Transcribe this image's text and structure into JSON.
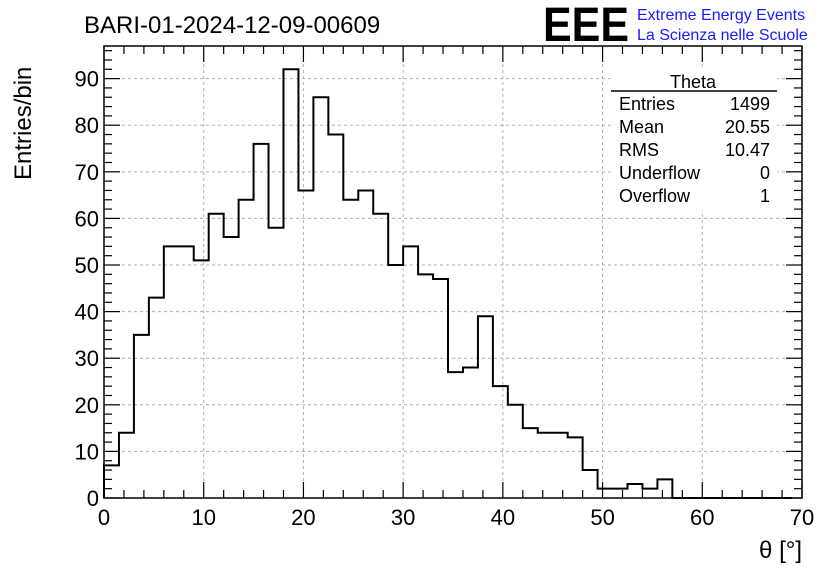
{
  "chart_data": {
    "type": "bar",
    "title": "BARI-01-2024-12-09-00609",
    "xlabel": "θ [°]",
    "ylabel": "Entries/bin",
    "xlim": [
      0,
      70
    ],
    "ylim": [
      0,
      97
    ],
    "x_ticks": [
      0,
      10,
      20,
      30,
      40,
      50,
      60,
      70
    ],
    "y_ticks": [
      0,
      10,
      20,
      30,
      40,
      50,
      60,
      70,
      80,
      90
    ],
    "grid": true,
    "bin_width": 1.5,
    "x_start": 0,
    "values": [
      7,
      14,
      35,
      43,
      54,
      54,
      51,
      61,
      56,
      64,
      76,
      58,
      92,
      66,
      86,
      78,
      64,
      66,
      61,
      50,
      54,
      48,
      47,
      27,
      28,
      39,
      24,
      20,
      15,
      14,
      14,
      13,
      6,
      2,
      2,
      3,
      2,
      4,
      0,
      0,
      0,
      0,
      0,
      0,
      0,
      0
    ]
  },
  "stats": {
    "name": "Theta",
    "rows": [
      {
        "label": "Entries",
        "value": "1499"
      },
      {
        "label": "Mean",
        "value": "20.55"
      },
      {
        "label": "RMS",
        "value": "10.47"
      },
      {
        "label": "Underflow",
        "value": "0"
      },
      {
        "label": "Overflow",
        "value": "1"
      }
    ]
  },
  "logo": {
    "mark": "EEE",
    "line1": "Extreme Energy Events",
    "line2": "La Scienza nelle Scuole"
  }
}
